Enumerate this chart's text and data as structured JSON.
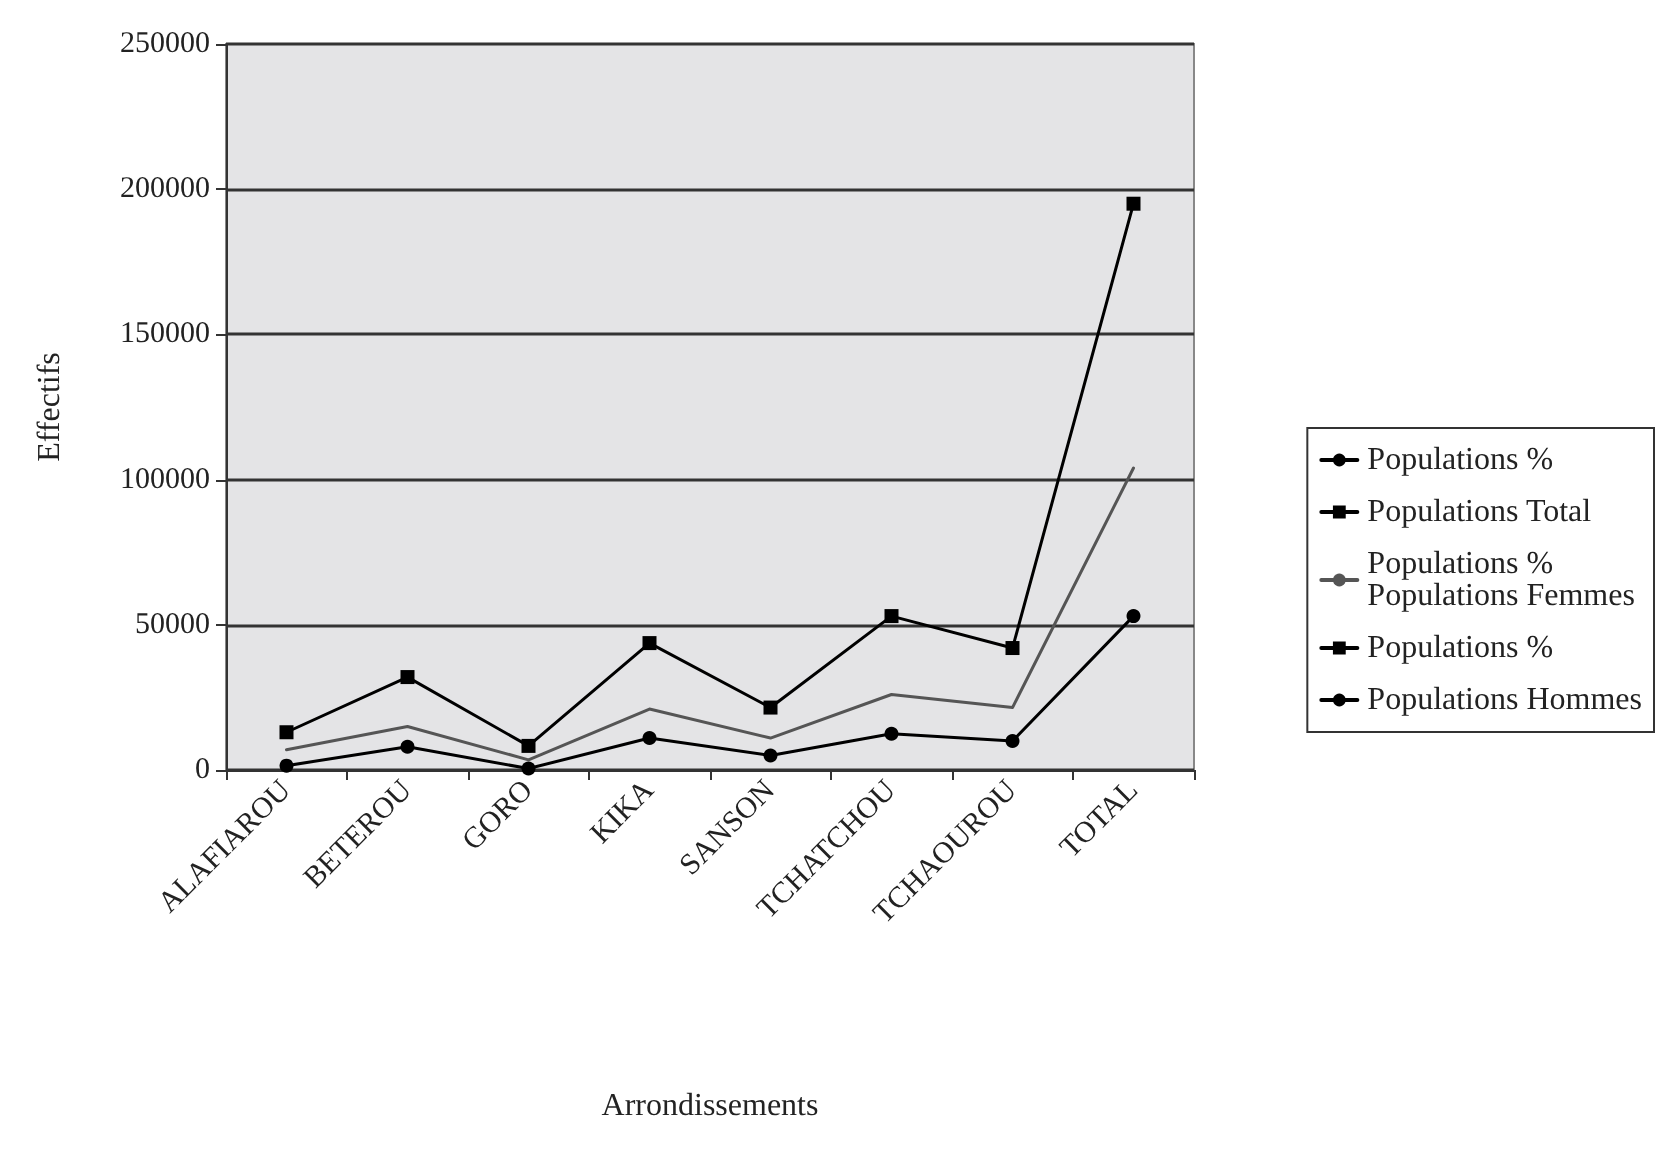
{
  "chart_data": {
    "type": "line",
    "xlabel": "Arrondissements",
    "ylabel": "Effectifs",
    "categories": [
      "ALAFIAROU",
      "BETEROU",
      "GORO",
      "KIKA",
      "SANSON",
      "TCHATCHOU",
      "TCHAOUROU",
      "TOTAL"
    ],
    "series": [
      {
        "name": "Populations %",
        "color": "#000000",
        "marker": "circle",
        "values": [
          null,
          null,
          null,
          null,
          null,
          null,
          null,
          null
        ]
      },
      {
        "name": "Populations Total",
        "color": "#000000",
        "marker": "square",
        "values": [
          13000,
          32000,
          8300,
          43700,
          21500,
          53000,
          42000,
          195000
        ]
      },
      {
        "name": "Populations %\nPopulations Femmes",
        "color": "#555555",
        "marker": "none",
        "values": [
          7000,
          15000,
          3500,
          21000,
          11000,
          26000,
          21500,
          104000
        ]
      },
      {
        "name": "Populations %",
        "color": "#000000",
        "marker": "square",
        "values": [
          null,
          null,
          null,
          null,
          null,
          null,
          null,
          null
        ]
      },
      {
        "name": "Populations Hommes",
        "color": "#000000",
        "marker": "circle",
        "values": [
          1500,
          8000,
          500,
          11000,
          5000,
          12500,
          10000,
          53000
        ]
      }
    ],
    "ylim": [
      0,
      250000
    ],
    "yticks": [
      0,
      50000,
      100000,
      150000,
      200000,
      250000
    ],
    "grid": "y",
    "legend": "right",
    "line_style": "solid"
  }
}
